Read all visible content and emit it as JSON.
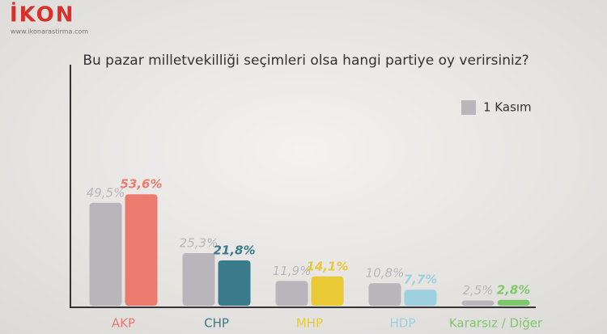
{
  "brand": {
    "logo": "İKON",
    "url": "www.ikonarastirma.com"
  },
  "chart_data": {
    "type": "bar",
    "title": "Bu pazar milletvekilliği seçimleri olsa hangi partiye oy verirsiniz?",
    "categories": [
      "AKP",
      "CHP",
      "MHP",
      "HDP",
      "Kararsız / Diğer"
    ],
    "series": [
      {
        "name": "1 Kasım",
        "color": "#b9b6bb",
        "values": [
          49.5,
          25.3,
          11.9,
          10.8,
          2.5
        ],
        "value_labels": [
          "49,5%",
          "25,3%",
          "11,9%",
          "10,8%",
          "2,5%"
        ]
      },
      {
        "colors": [
          "#ec7b6f",
          "#3b7a8b",
          "#e9c935",
          "#9fd0df",
          "#7ec86b"
        ],
        "values": [
          53.6,
          21.8,
          14.1,
          7.7,
          2.8
        ],
        "value_labels": [
          "53,6%",
          "21,8%",
          "14,1%",
          "7,7%",
          "2,8%"
        ]
      }
    ],
    "legend": "top-right"
  }
}
